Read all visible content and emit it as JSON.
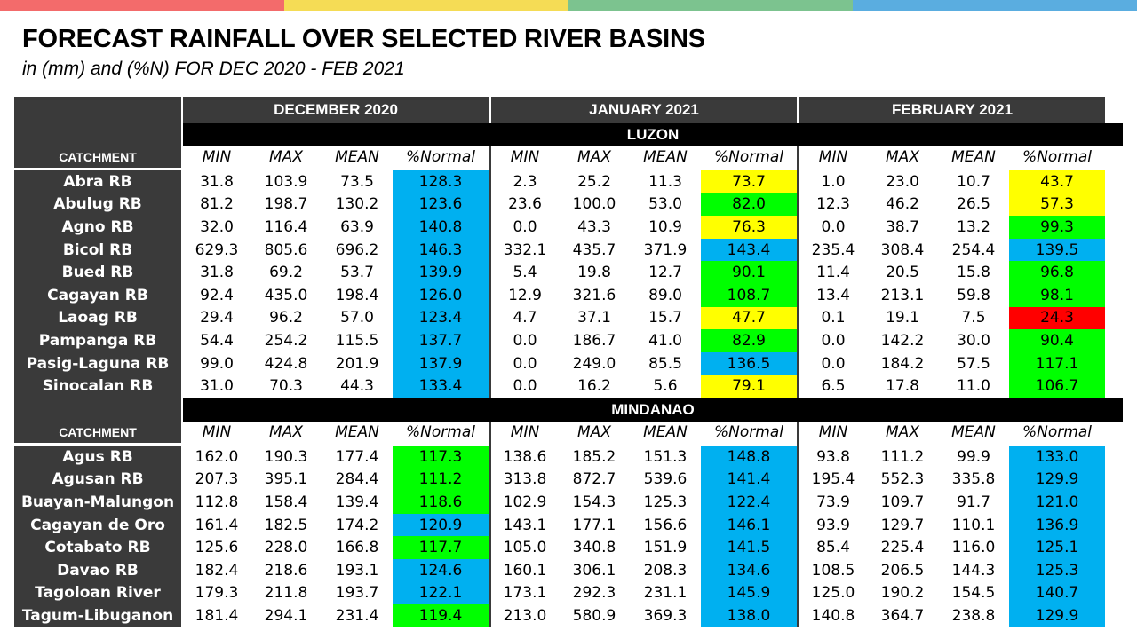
{
  "colors": {
    "header_dark": "#3a3a3a",
    "region_band": "#000000",
    "blue": "#00b0f0",
    "green": "#00ff00",
    "yellow": "#ffff00",
    "red": "#ff0000",
    "topbar": [
      "#f36b6b",
      "#f5dc55",
      "#7cc38f",
      "#5aade0"
    ]
  },
  "title": "FORECAST RAINFALL OVER SELECTED RIVER BASINS",
  "subtitle": "in (mm) and (%N) FOR DEC 2020 - FEB 2021",
  "months": [
    "DECEMBER 2020",
    "JANUARY 2021",
    "FEBRUARY 2021"
  ],
  "catchment_label": "CATCHMENT",
  "columns": [
    "MIN",
    "MAX",
    "MEAN",
    "%Normal"
  ],
  "regions": [
    {
      "name": "LUZON",
      "rows": [
        {
          "name": "Abra RB",
          "dec": [
            "31.8",
            "103.9",
            "73.5",
            "128.3"
          ],
          "dec_c": "blue",
          "jan": [
            "2.3",
            "25.2",
            "11.3",
            "73.7"
          ],
          "jan_c": "yellow",
          "feb": [
            "1.0",
            "23.0",
            "10.7",
            "43.7"
          ],
          "feb_c": "yellow"
        },
        {
          "name": "Abulug RB",
          "dec": [
            "81.2",
            "198.7",
            "130.2",
            "123.6"
          ],
          "dec_c": "blue",
          "jan": [
            "23.6",
            "100.0",
            "53.0",
            "82.0"
          ],
          "jan_c": "green",
          "feb": [
            "12.3",
            "46.2",
            "26.5",
            "57.3"
          ],
          "feb_c": "yellow"
        },
        {
          "name": "Agno RB",
          "dec": [
            "32.0",
            "116.4",
            "63.9",
            "140.8"
          ],
          "dec_c": "blue",
          "jan": [
            "0.0",
            "43.3",
            "10.9",
            "76.3"
          ],
          "jan_c": "yellow",
          "feb": [
            "0.0",
            "38.7",
            "13.2",
            "99.3"
          ],
          "feb_c": "green"
        },
        {
          "name": "Bicol RB",
          "dec": [
            "629.3",
            "805.6",
            "696.2",
            "146.3"
          ],
          "dec_c": "blue",
          "jan": [
            "332.1",
            "435.7",
            "371.9",
            "143.4"
          ],
          "jan_c": "blue",
          "feb": [
            "235.4",
            "308.4",
            "254.4",
            "139.5"
          ],
          "feb_c": "blue"
        },
        {
          "name": "Bued RB",
          "dec": [
            "31.8",
            "69.2",
            "53.7",
            "139.9"
          ],
          "dec_c": "blue",
          "jan": [
            "5.4",
            "19.8",
            "12.7",
            "90.1"
          ],
          "jan_c": "green",
          "feb": [
            "11.4",
            "20.5",
            "15.8",
            "96.8"
          ],
          "feb_c": "green"
        },
        {
          "name": "Cagayan RB",
          "dec": [
            "92.4",
            "435.0",
            "198.4",
            "126.0"
          ],
          "dec_c": "blue",
          "jan": [
            "12.9",
            "321.6",
            "89.0",
            "108.7"
          ],
          "jan_c": "green",
          "feb": [
            "13.4",
            "213.1",
            "59.8",
            "98.1"
          ],
          "feb_c": "green"
        },
        {
          "name": "Laoag RB",
          "dec": [
            "29.4",
            "96.2",
            "57.0",
            "123.4"
          ],
          "dec_c": "blue",
          "jan": [
            "4.7",
            "37.1",
            "15.7",
            "47.7"
          ],
          "jan_c": "yellow",
          "feb": [
            "0.1",
            "19.1",
            "7.5",
            "24.3"
          ],
          "feb_c": "red"
        },
        {
          "name": "Pampanga RB",
          "dec": [
            "54.4",
            "254.2",
            "115.5",
            "137.7"
          ],
          "dec_c": "blue",
          "jan": [
            "0.0",
            "186.7",
            "41.0",
            "82.9"
          ],
          "jan_c": "green",
          "feb": [
            "0.0",
            "142.2",
            "30.0",
            "90.4"
          ],
          "feb_c": "green"
        },
        {
          "name": "Pasig-Laguna RB",
          "dec": [
            "99.0",
            "424.8",
            "201.9",
            "137.9"
          ],
          "dec_c": "blue",
          "jan": [
            "0.0",
            "249.0",
            "85.5",
            "136.5"
          ],
          "jan_c": "blue",
          "feb": [
            "0.0",
            "184.2",
            "57.5",
            "117.1"
          ],
          "feb_c": "green"
        },
        {
          "name": "Sinocalan RB",
          "dec": [
            "31.0",
            "70.3",
            "44.3",
            "133.4"
          ],
          "dec_c": "blue",
          "jan": [
            "0.0",
            "16.2",
            "5.6",
            "79.1"
          ],
          "jan_c": "yellow",
          "feb": [
            "6.5",
            "17.8",
            "11.0",
            "106.7"
          ],
          "feb_c": "green"
        }
      ]
    },
    {
      "name": "MINDANAO",
      "rows": [
        {
          "name": "Agus RB",
          "dec": [
            "162.0",
            "190.3",
            "177.4",
            "117.3"
          ],
          "dec_c": "green",
          "jan": [
            "138.6",
            "185.2",
            "151.3",
            "148.8"
          ],
          "jan_c": "blue",
          "feb": [
            "93.8",
            "111.2",
            "99.9",
            "133.0"
          ],
          "feb_c": "blue"
        },
        {
          "name": "Agusan RB",
          "dec": [
            "207.3",
            "395.1",
            "284.4",
            "111.2"
          ],
          "dec_c": "green",
          "jan": [
            "313.8",
            "872.7",
            "539.6",
            "141.4"
          ],
          "jan_c": "blue",
          "feb": [
            "195.4",
            "552.3",
            "335.8",
            "129.9"
          ],
          "feb_c": "blue"
        },
        {
          "name": "Buayan-Malungon",
          "dec": [
            "112.8",
            "158.4",
            "139.4",
            "118.6"
          ],
          "dec_c": "green",
          "jan": [
            "102.9",
            "154.3",
            "125.3",
            "122.4"
          ],
          "jan_c": "blue",
          "feb": [
            "73.9",
            "109.7",
            "91.7",
            "121.0"
          ],
          "feb_c": "blue"
        },
        {
          "name": "Cagayan de Oro",
          "dec": [
            "161.4",
            "182.5",
            "174.2",
            "120.9"
          ],
          "dec_c": "blue",
          "jan": [
            "143.1",
            "177.1",
            "156.6",
            "146.1"
          ],
          "jan_c": "blue",
          "feb": [
            "93.9",
            "129.7",
            "110.1",
            "136.9"
          ],
          "feb_c": "blue"
        },
        {
          "name": "Cotabato RB",
          "dec": [
            "125.6",
            "228.0",
            "166.8",
            "117.7"
          ],
          "dec_c": "green",
          "jan": [
            "105.0",
            "340.8",
            "151.9",
            "141.5"
          ],
          "jan_c": "blue",
          "feb": [
            "85.4",
            "225.4",
            "116.0",
            "125.1"
          ],
          "feb_c": "blue"
        },
        {
          "name": "Davao RB",
          "dec": [
            "182.4",
            "218.6",
            "193.1",
            "124.6"
          ],
          "dec_c": "blue",
          "jan": [
            "160.1",
            "306.1",
            "208.3",
            "134.6"
          ],
          "jan_c": "blue",
          "feb": [
            "108.5",
            "206.5",
            "144.3",
            "125.3"
          ],
          "feb_c": "blue"
        },
        {
          "name": "Tagoloan River",
          "dec": [
            "179.3",
            "211.8",
            "193.7",
            "122.1"
          ],
          "dec_c": "blue",
          "jan": [
            "173.1",
            "292.3",
            "231.1",
            "145.9"
          ],
          "jan_c": "blue",
          "feb": [
            "125.0",
            "190.2",
            "154.5",
            "140.7"
          ],
          "feb_c": "blue"
        },
        {
          "name": "Tagum-Libuganon",
          "dec": [
            "181.4",
            "294.1",
            "231.4",
            "119.4"
          ],
          "dec_c": "green",
          "jan": [
            "213.0",
            "580.9",
            "369.3",
            "138.0"
          ],
          "jan_c": "blue",
          "feb": [
            "140.8",
            "364.7",
            "238.8",
            "129.9"
          ],
          "feb_c": "blue"
        }
      ]
    }
  ]
}
